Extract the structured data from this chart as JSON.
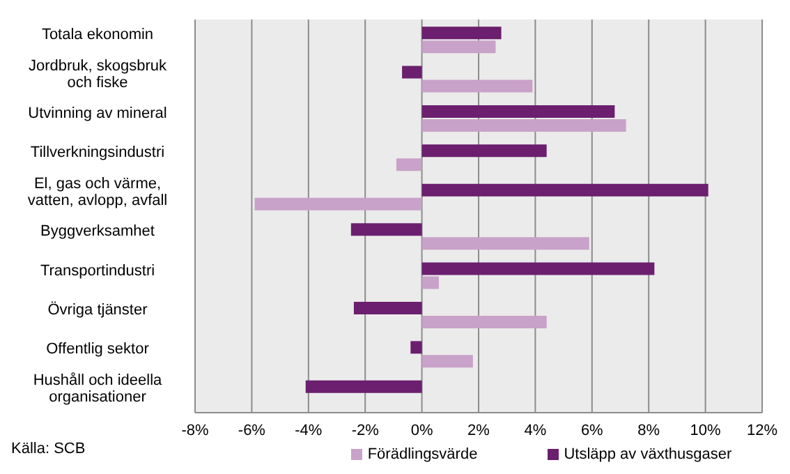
{
  "chart_data": {
    "type": "bar",
    "orientation": "horizontal",
    "categories": [
      "Totala ekonomin",
      "Jordbruk, skogsbruk och fiske",
      "Utvinning av mineral",
      "Tillverkningsindustri",
      "El, gas och värme, vatten, avlopp, avfall",
      "Byggverksamhet",
      "Transportindustri",
      "Övriga tjänster",
      "Offentlig sektor",
      "Hushåll och ideella organisationer"
    ],
    "series": [
      {
        "name": "Utsläpp av växthusgaser",
        "color": "#6b1f6e",
        "values": [
          2.8,
          -0.7,
          6.8,
          4.4,
          10.1,
          -2.5,
          8.2,
          -2.4,
          -0.4,
          -4.1
        ]
      },
      {
        "name": "Förädlingsvärde",
        "color": "#c8a2c8",
        "values": [
          2.6,
          3.9,
          7.2,
          -0.9,
          -5.9,
          5.9,
          0.6,
          4.4,
          1.8,
          null
        ]
      }
    ],
    "xlim": [
      -8,
      12
    ],
    "xticks": [
      {
        "value": -8,
        "label": "-8%"
      },
      {
        "value": -6,
        "label": "-6%"
      },
      {
        "value": -4,
        "label": "-4%"
      },
      {
        "value": -2,
        "label": "-2%"
      },
      {
        "value": 0,
        "label": "0%"
      },
      {
        "value": 2,
        "label": "2%"
      },
      {
        "value": 4,
        "label": "4%"
      },
      {
        "value": 6,
        "label": "6%"
      },
      {
        "value": 8,
        "label": "8%"
      },
      {
        "value": 10,
        "label": "10%"
      },
      {
        "value": 12,
        "label": "12%"
      }
    ],
    "grid": "x",
    "legend": "bottom",
    "annotations": [
      "Källa: SCB"
    ]
  }
}
